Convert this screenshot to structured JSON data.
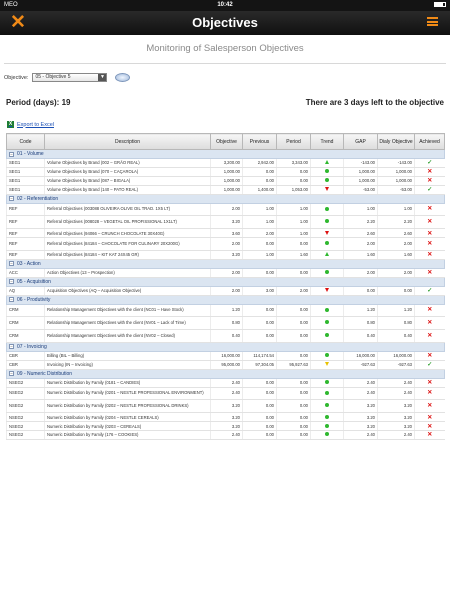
{
  "status_bar": {
    "carrier": "MEO",
    "time": "10:42"
  },
  "header": {
    "title": "Objectives",
    "close_icon": "close-icon",
    "menu_icon": "list-menu-icon",
    "accent": "#f08a17"
  },
  "subtitle": "Monitoring of Salesperson Objectives",
  "objective_select": {
    "label": "Objective:",
    "value": "05 - Objective 5"
  },
  "period_text": "Period (days): 19",
  "remaining_text": "There are 3 days left to the objective",
  "export_label": "Export to Excel",
  "columns": [
    "Code",
    "Description",
    "Objective",
    "Previous",
    "Period",
    "Trend",
    "GAP",
    "Dialy Objective",
    "Achieved"
  ],
  "groups": [
    {
      "name": "01 - Volume",
      "rows": [
        {
          "code": "SEG1",
          "desc": "Volume Objectives by Brand (002 – GRÃO REAL)",
          "objective": "3,200.00",
          "previous": "2,942.00",
          "period": "3,343.00",
          "trend": "up",
          "gap": "-143.00",
          "daily": "-143.00",
          "achieved": "yes"
        },
        {
          "code": "SEG1",
          "desc": "Volume Objectives by Brand (070 – CAÇAROLA)",
          "objective": "1,000.00",
          "previous": "0.00",
          "period": "0.00",
          "trend": "dot",
          "gap": "1,000.00",
          "daily": "1,000.00",
          "achieved": "no"
        },
        {
          "code": "SEG1",
          "desc": "Volume Objectives by Brand (087 – BIGALA)",
          "objective": "1,000.00",
          "previous": "0.00",
          "period": "0.00",
          "trend": "dot",
          "gap": "1,000.00",
          "daily": "1,000.00",
          "achieved": "no"
        },
        {
          "code": "SEG1",
          "desc": "Volume Objectives by Brand (140 – PATO REAL)",
          "objective": "1,000.00",
          "previous": "1,400.00",
          "period": "1,053.00",
          "trend": "down-red",
          "gap": "-53.00",
          "daily": "-53.00",
          "achieved": "yes"
        }
      ]
    },
    {
      "name": "02 - Referentiation",
      "rows": [
        {
          "code": "REF",
          "desc": "Referral Objectives (003088 OLIVEIRA OLIVE OIL TRAD. 1X5 LT)",
          "objective": "2.00",
          "previous": "1.00",
          "period": "1.00",
          "trend": "dot",
          "gap": "1.00",
          "daily": "1.00",
          "achieved": "no",
          "tall": true
        },
        {
          "code": "REF",
          "desc": "Referral Objectives (008028 – VEGETAL OIL PROFISSIONAL 1X1LT)",
          "objective": "3.20",
          "previous": "1.00",
          "period": "1.00",
          "trend": "dot",
          "gap": "2.20",
          "daily": "2.20",
          "achieved": "no",
          "tall": true
        },
        {
          "code": "REF",
          "desc": "Referral Objectives (94066 – CRUNCH CHOCOLATE 30X40G)",
          "objective": "3.60",
          "previous": "2.00",
          "period": "1.00",
          "trend": "down-red",
          "gap": "2.60",
          "daily": "2.60",
          "achieved": "no"
        },
        {
          "code": "REF",
          "desc": "Referral Objectives (84184 – CHOCOLATE FOR CULINARY 20X200G)",
          "objective": "2.00",
          "previous": "0.00",
          "period": "0.00",
          "trend": "dot",
          "gap": "2.00",
          "daily": "2.00",
          "achieved": "no",
          "tall": true
        },
        {
          "code": "REF",
          "desc": "Referral Objectives (84184 – KIT KAT 24X45 GR)",
          "objective": "3.20",
          "previous": "1.00",
          "period": "1.60",
          "trend": "up",
          "gap": "1.60",
          "daily": "1.60",
          "achieved": "no"
        }
      ]
    },
    {
      "name": "03 - Action",
      "rows": [
        {
          "code": "ACC",
          "desc": "Action Objectives (13 – Prospection)",
          "objective": "2.00",
          "previous": "0.00",
          "period": "0.00",
          "trend": "dot",
          "gap": "2.00",
          "daily": "2.00",
          "achieved": "no"
        }
      ]
    },
    {
      "name": "05 - Acquisition",
      "rows": [
        {
          "code": "AQ",
          "desc": "Acquisition Objectives (AQ – Acquisition Objective)",
          "objective": "2.00",
          "previous": "3.00",
          "period": "2.00",
          "trend": "down-red",
          "gap": "0.00",
          "daily": "0.00",
          "achieved": "yes"
        }
      ]
    },
    {
      "name": "06 - Produtivity",
      "rows": [
        {
          "code": "CRM",
          "desc": "Relationship Management Objectives with the client (NC01 – Have Stock)",
          "objective": "1.20",
          "previous": "0.00",
          "period": "0.00",
          "trend": "dot",
          "gap": "1.20",
          "daily": "1.20",
          "achieved": "no",
          "tall": true
        },
        {
          "code": "CRM",
          "desc": "Relationship Management Objectives with the client (NV01 – Lack of Time)",
          "objective": "0.80",
          "previous": "0.00",
          "period": "0.00",
          "trend": "dot",
          "gap": "0.80",
          "daily": "0.80",
          "achieved": "no",
          "tall": true
        },
        {
          "code": "CRM",
          "desc": "Relationship Management Objectives with the client (NV02 – Closed)",
          "objective": "0.40",
          "previous": "0.00",
          "period": "0.00",
          "trend": "dot",
          "gap": "0.40",
          "daily": "0.40",
          "achieved": "no",
          "tall": true
        }
      ]
    },
    {
      "name": "07 - Invoicing",
      "rows": [
        {
          "code": "CBR",
          "desc": "Billing (BIL – Billing)",
          "objective": "16,000.00",
          "previous": "114,174.54",
          "period": "0.00",
          "trend": "dot",
          "gap": "16,000.00",
          "daily": "16,000.00",
          "achieved": "no"
        },
        {
          "code": "CBR",
          "desc": "Invoicing (IN – Invoicing)",
          "objective": "95,000.00",
          "previous": "97,304.05",
          "period": "95,927.63",
          "trend": "down-yel",
          "gap": "-927.63",
          "daily": "-927.63",
          "achieved": "yes"
        }
      ]
    },
    {
      "name": "09 - Numeric Distribution",
      "rows": [
        {
          "code": "NSEG2",
          "desc": "Numeric Distribution by Family (0181 – CANDIES)",
          "objective": "2.40",
          "previous": "0.00",
          "period": "0.00",
          "trend": "dot",
          "gap": "2.40",
          "daily": "2.40",
          "achieved": "no"
        },
        {
          "code": "NSEG2",
          "desc": "Numeric Distribution by Family (0201 – NESTLE PROFESSIONAL ENVIRONMENT)",
          "objective": "2.40",
          "previous": "0.00",
          "period": "0.00",
          "trend": "dot",
          "gap": "2.40",
          "daily": "2.40",
          "achieved": "no",
          "tall": true
        },
        {
          "code": "NSEG2",
          "desc": "Numeric Distribution by Family (0202 – NESTLE PROFESSIONAL DRINKS)",
          "objective": "3.20",
          "previous": "0.00",
          "period": "0.00",
          "trend": "dot",
          "gap": "3.20",
          "daily": "3.20",
          "achieved": "no",
          "tall": true
        },
        {
          "code": "NSEG2",
          "desc": "Numeric Distribution by Family (0204 – NESTLE CEREALS)",
          "objective": "3.20",
          "previous": "0.00",
          "period": "0.00",
          "trend": "dot",
          "gap": "3.20",
          "daily": "3.20",
          "achieved": "no"
        },
        {
          "code": "NSEG2",
          "desc": "Numeric Distribution by Family (0203 – CEREALS)",
          "objective": "3.20",
          "previous": "0.00",
          "period": "0.00",
          "trend": "dot",
          "gap": "3.20",
          "daily": "3.20",
          "achieved": "no"
        },
        {
          "code": "NSEG2",
          "desc": "Numeric Distribution by Family (176 – COOKIES)",
          "objective": "2.40",
          "previous": "0.00",
          "period": "0.00",
          "trend": "dot",
          "gap": "2.40",
          "daily": "2.40",
          "achieved": "no"
        }
      ]
    }
  ]
}
